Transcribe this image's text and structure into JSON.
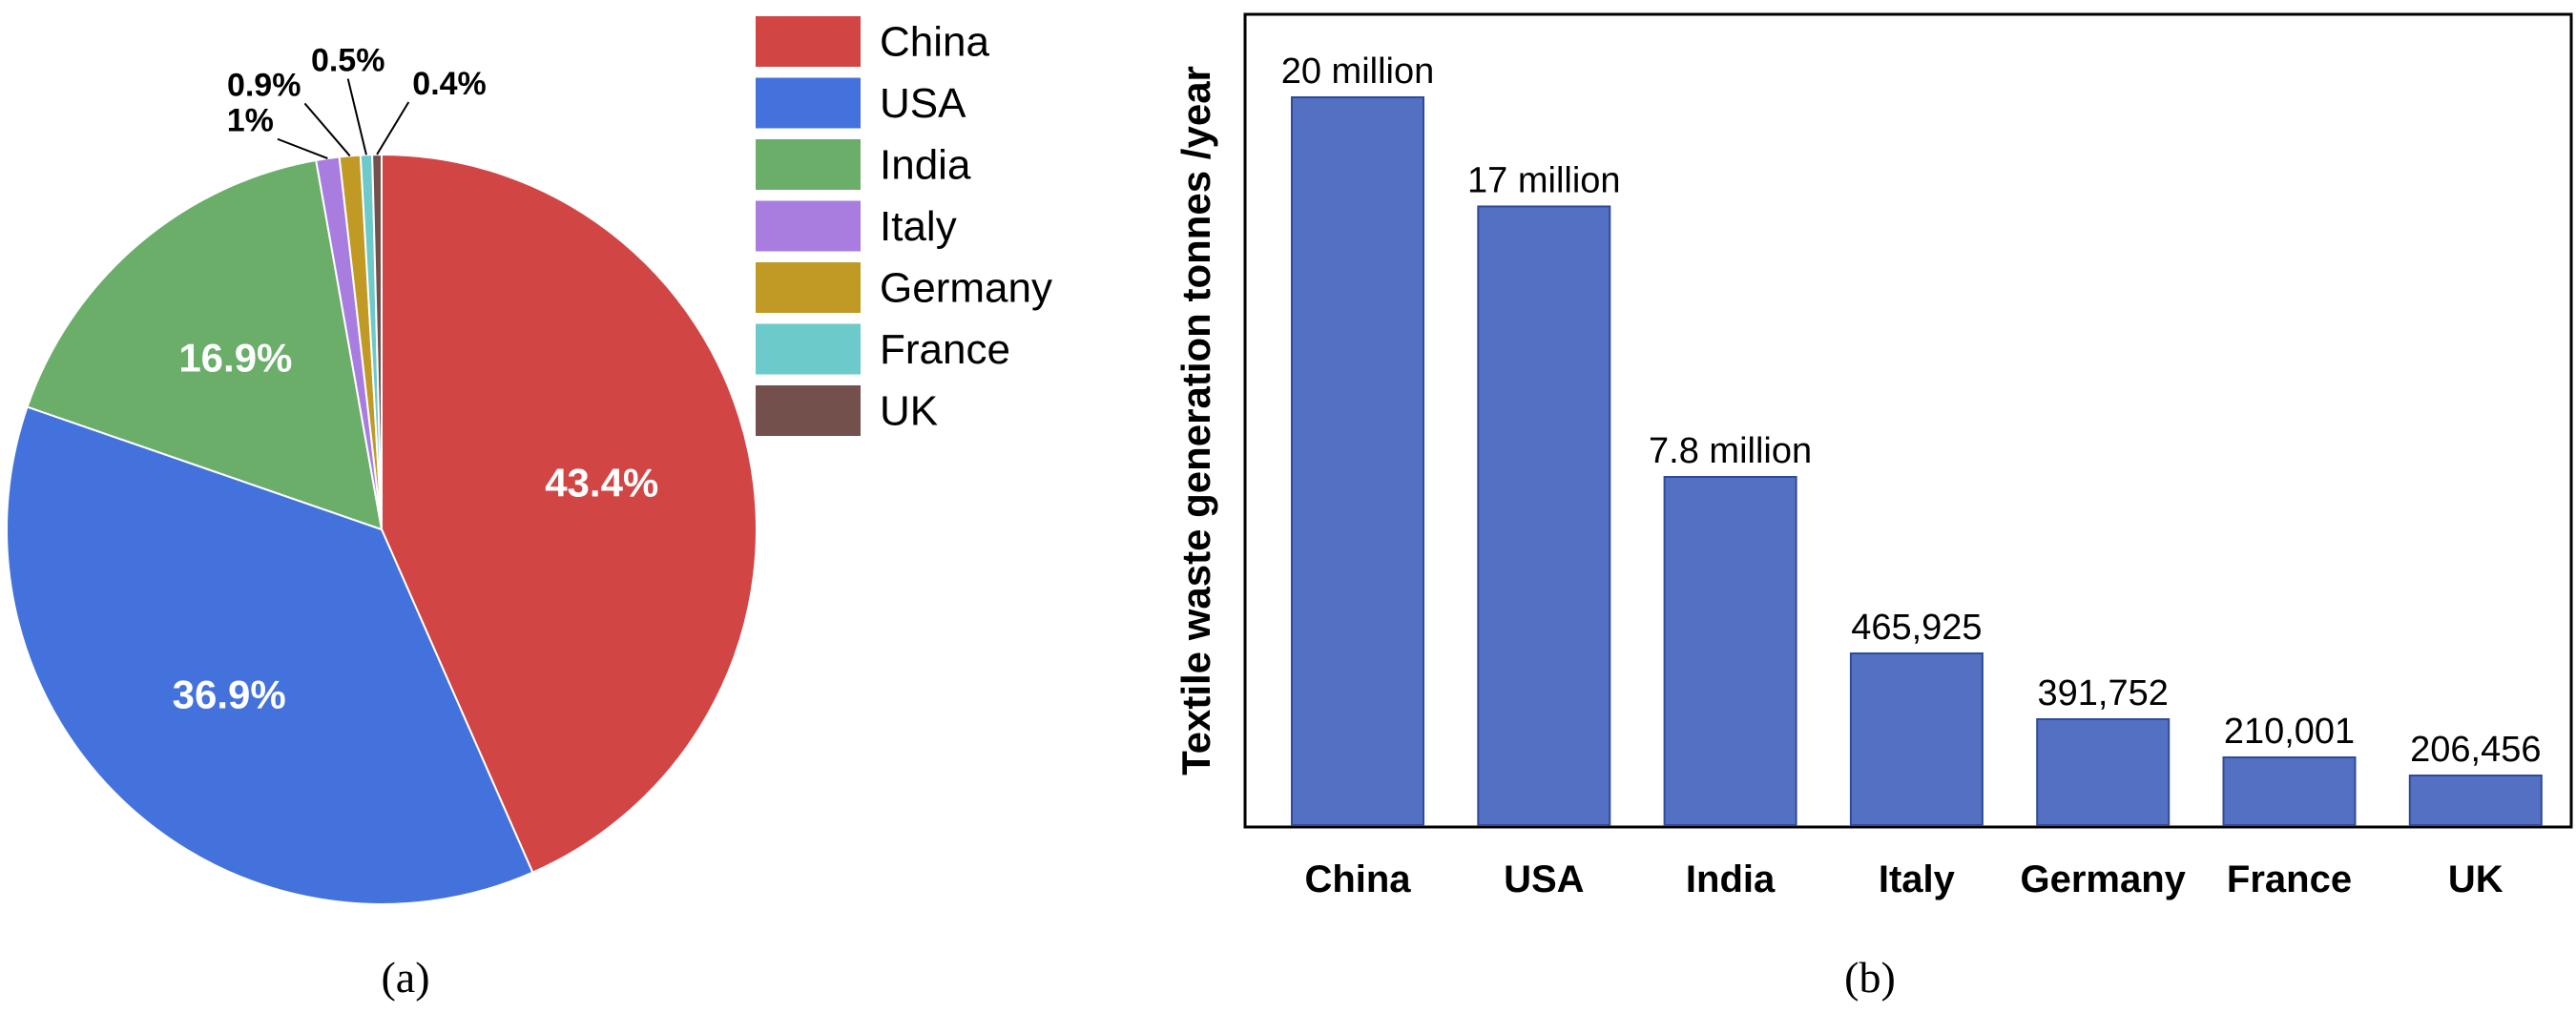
{
  "chart_data": [
    {
      "type": "pie",
      "panel_label": "(a)",
      "slices": [
        {
          "label": "China",
          "value": 43.4,
          "display": "43.4%",
          "color": "#d24545"
        },
        {
          "label": "USA",
          "value": 36.9,
          "display": "36.9%",
          "color": "#4472dd"
        },
        {
          "label": "India",
          "value": 16.9,
          "display": "16.9%",
          "color": "#6aae6a"
        },
        {
          "label": "Italy",
          "value": 1.0,
          "display": "1%",
          "color": "#a97de0"
        },
        {
          "label": "Germany",
          "value": 0.9,
          "display": "0.9%",
          "color": "#c09a24"
        },
        {
          "label": "France",
          "value": 0.5,
          "display": "0.5%",
          "color": "#6ccaca"
        },
        {
          "label": "UK",
          "value": 0.4,
          "display": "0.4%",
          "color": "#74504d"
        }
      ],
      "legend_position": "top-right"
    },
    {
      "type": "bar",
      "panel_label": "(b)",
      "ylabel": "Textile waste generation tonnes /year",
      "categories": [
        "China",
        "USA",
        "India",
        "Italy",
        "Germany",
        "France",
        "UK"
      ],
      "values": [
        20000000,
        17000000,
        7800000,
        465925,
        391752,
        210001,
        206456
      ],
      "value_labels": [
        "20 million",
        "17 million",
        "7.8 million",
        "465,925",
        "391,752",
        "210,001",
        "206,456"
      ],
      "bar_color": "#5470c2",
      "grid": false
    }
  ]
}
